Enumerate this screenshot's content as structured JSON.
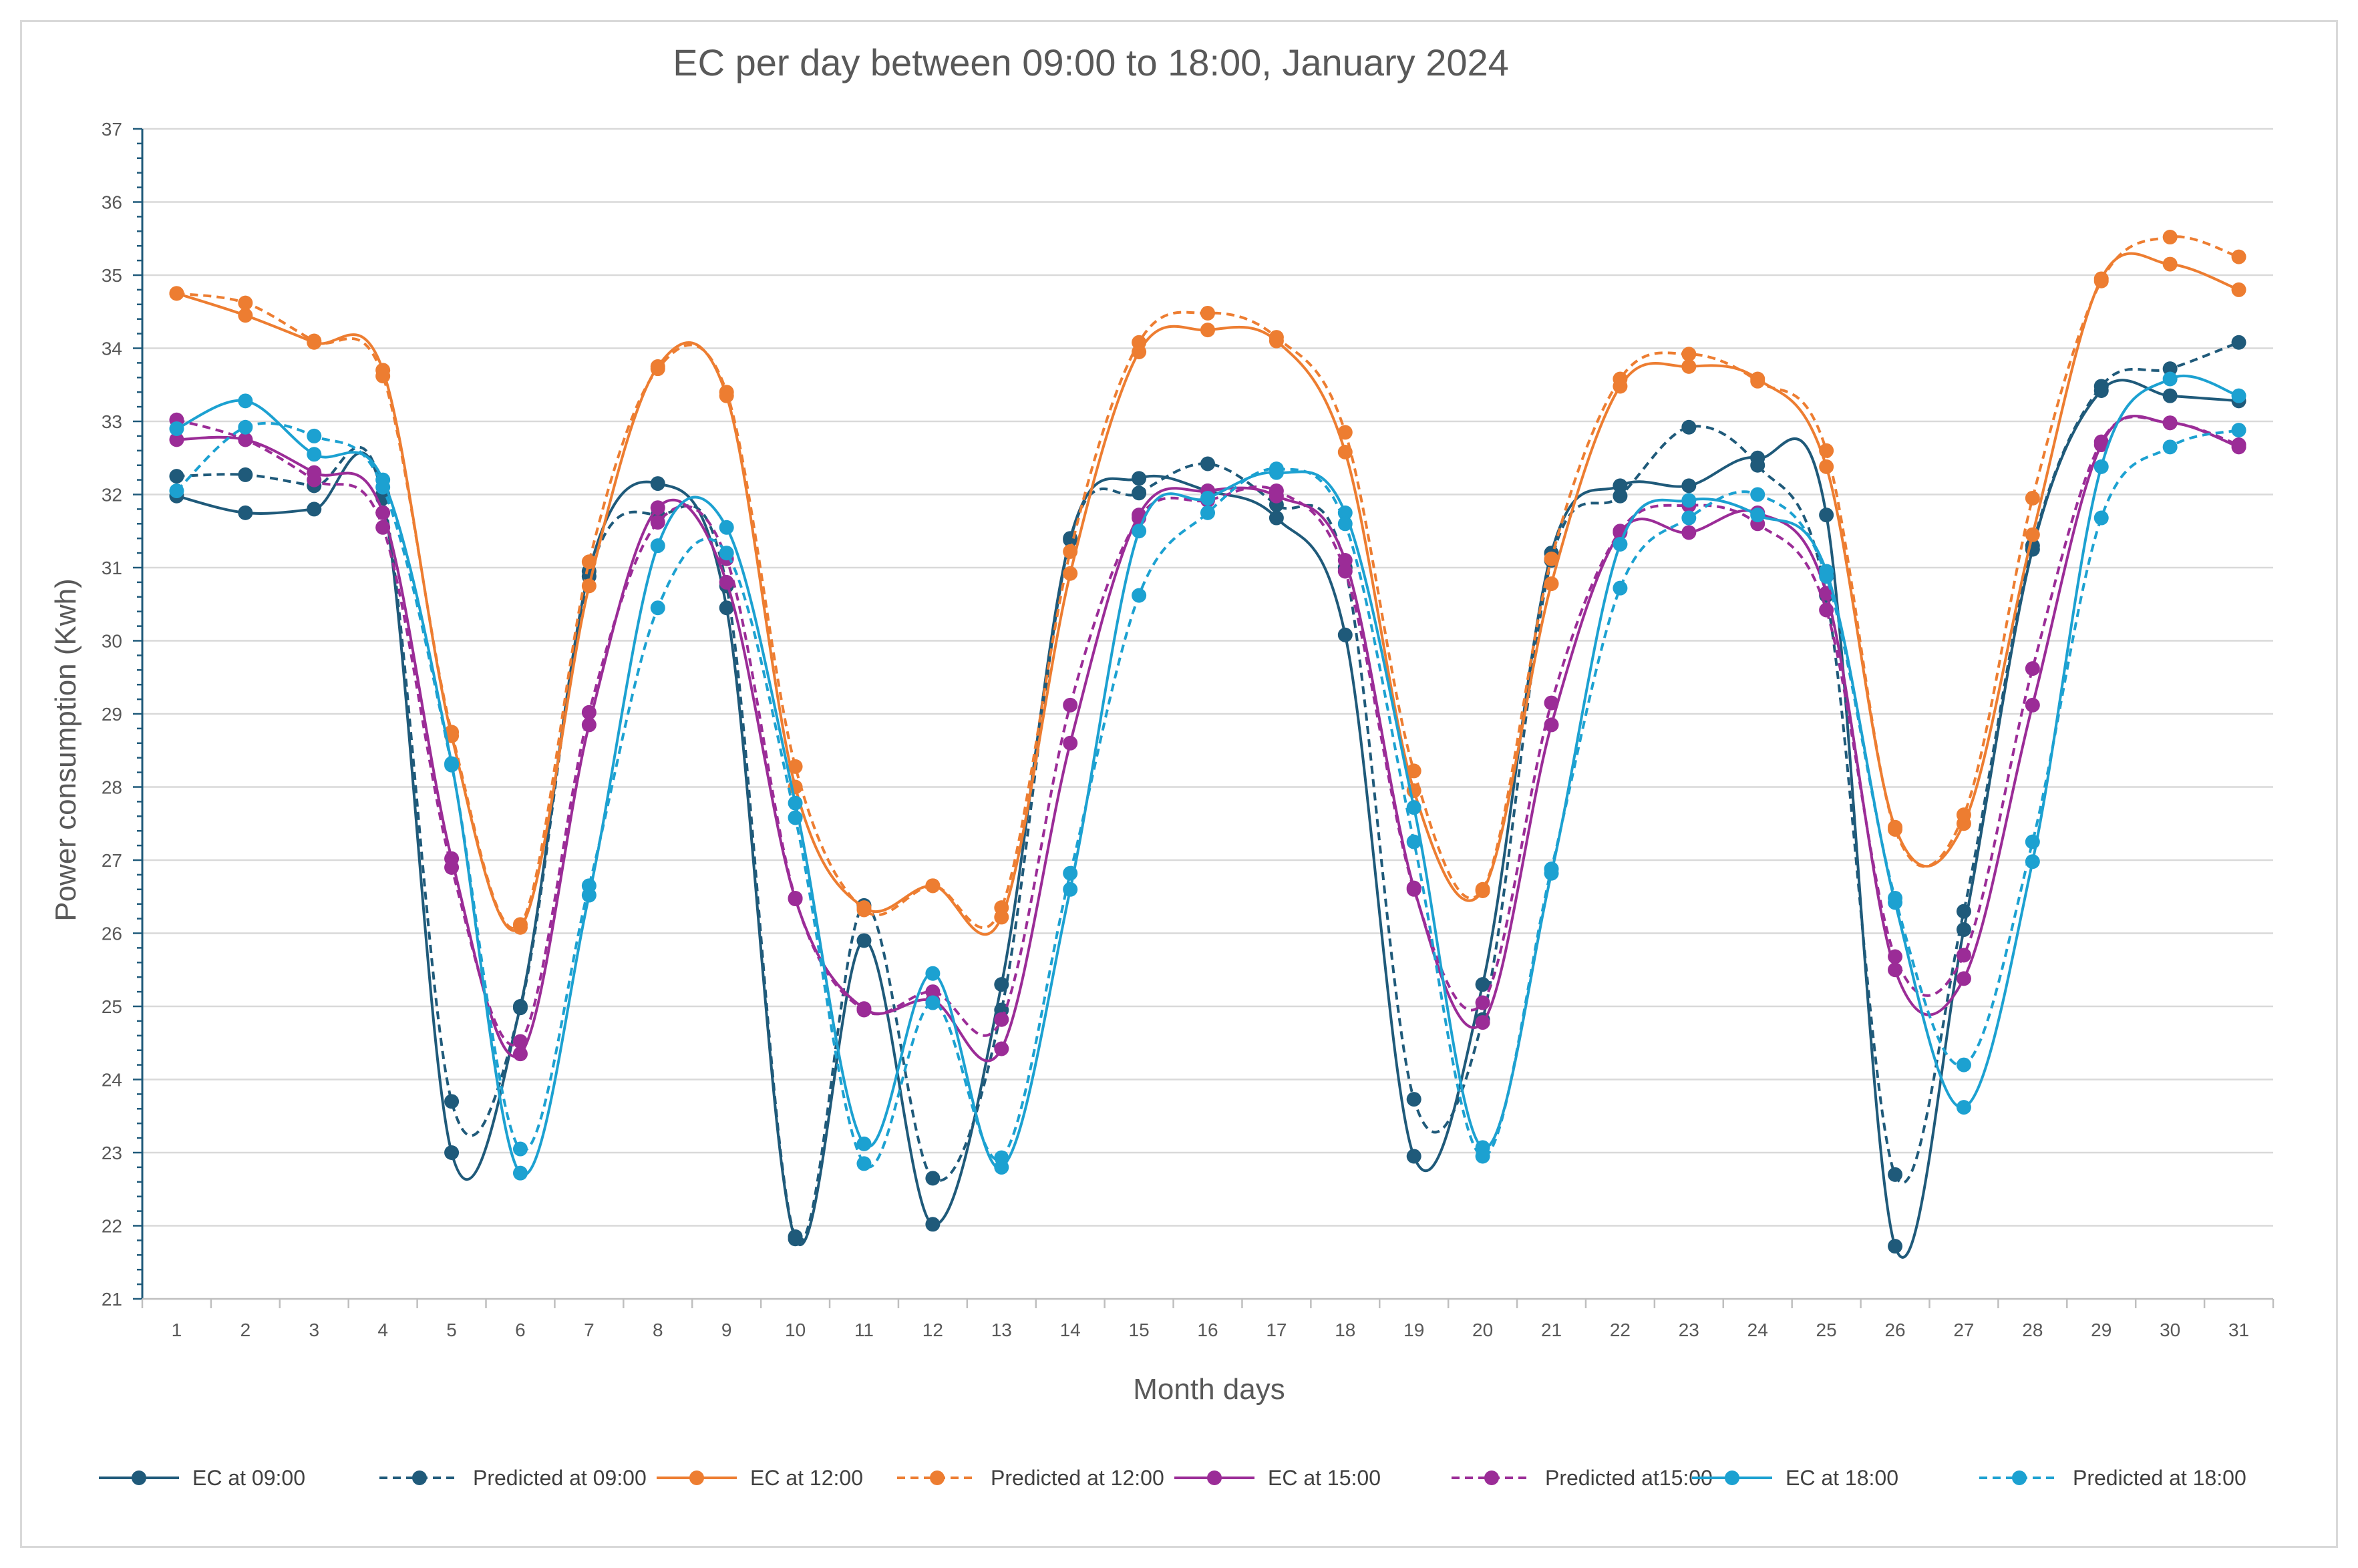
{
  "chart_data": {
    "type": "line",
    "title": "EC per day between 09:00 to 18:00, January 2024",
    "xlabel": "Month days",
    "ylabel": "Power consumption (Kwh)",
    "ylim": [
      21,
      37
    ],
    "yticks": [
      "21",
      "22",
      "23",
      "24",
      "25",
      "26",
      "27",
      "28",
      "29",
      "30",
      "31",
      "32",
      "33",
      "34",
      "35",
      "36",
      "37"
    ],
    "x": [
      "1",
      "2",
      "3",
      "4",
      "5",
      "6",
      "7",
      "8",
      "9",
      "10",
      "11",
      "12",
      "13",
      "14",
      "15",
      "16",
      "17",
      "18",
      "19",
      "20",
      "21",
      "22",
      "23",
      "24",
      "25",
      "26",
      "27",
      "28",
      "29",
      "30",
      "31"
    ],
    "grid": "horizontal",
    "legend_position": "bottom",
    "series": [
      {
        "name": "EC at 09:00",
        "color": "#1f5a7a",
        "dash": false,
        "values": [
          31.98,
          31.75,
          31.8,
          31.95,
          23.0,
          25.0,
          30.95,
          32.15,
          30.45,
          21.82,
          25.9,
          22.02,
          25.3,
          31.4,
          32.22,
          32.05,
          31.68,
          30.08,
          22.95,
          25.3,
          31.2,
          32.12,
          32.12,
          32.5,
          31.72,
          21.72,
          26.05,
          31.25,
          33.42,
          33.35,
          33.28
        ]
      },
      {
        "name": "Predicted at 09:00",
        "color": "#1f5a7a",
        "dash": true,
        "values": [
          32.25,
          32.27,
          32.12,
          32.0,
          23.7,
          24.98,
          30.88,
          31.72,
          30.75,
          21.85,
          26.38,
          22.65,
          24.95,
          31.38,
          32.02,
          32.42,
          31.86,
          31.0,
          23.73,
          24.82,
          31.1,
          31.98,
          32.92,
          32.4,
          30.62,
          22.7,
          26.3,
          31.3,
          33.48,
          33.72,
          34.08
        ]
      },
      {
        "name": "EC at 12:00",
        "color": "#ed7d31",
        "dash": false,
        "values": [
          34.75,
          34.45,
          34.08,
          33.7,
          28.7,
          26.08,
          30.75,
          33.75,
          33.35,
          28.0,
          26.35,
          26.65,
          26.22,
          30.92,
          33.95,
          34.25,
          34.1,
          32.58,
          27.95,
          26.58,
          30.78,
          33.48,
          33.75,
          33.58,
          32.38,
          27.45,
          27.5,
          31.45,
          34.95,
          35.15,
          34.8
        ]
      },
      {
        "name": "Predicted at 12:00",
        "color": "#ed7d31",
        "dash": true,
        "values": [
          34.75,
          34.62,
          34.1,
          33.62,
          28.75,
          26.12,
          31.08,
          33.72,
          33.4,
          28.28,
          26.32,
          26.65,
          26.35,
          31.22,
          34.08,
          34.48,
          34.15,
          32.85,
          28.22,
          26.6,
          31.12,
          33.58,
          33.92,
          33.55,
          32.6,
          27.42,
          27.62,
          31.95,
          34.92,
          35.52,
          35.25
        ]
      },
      {
        "name": "EC at 15:00",
        "color": "#9b2c97",
        "dash": false,
        "values": [
          32.75,
          32.75,
          32.3,
          31.75,
          27.02,
          24.35,
          28.85,
          31.82,
          30.8,
          26.47,
          24.97,
          25.08,
          24.42,
          28.6,
          31.72,
          32.05,
          31.98,
          31.1,
          26.62,
          24.78,
          28.85,
          31.48,
          31.48,
          31.75,
          30.65,
          25.5,
          25.38,
          29.12,
          32.68,
          32.98,
          32.65
        ]
      },
      {
        "name": "Predicted at15:00",
        "color": "#9b2c97",
        "dash": true,
        "values": [
          33.02,
          32.75,
          32.2,
          31.55,
          26.9,
          24.52,
          29.02,
          31.62,
          31.12,
          26.48,
          24.95,
          25.2,
          24.82,
          29.12,
          31.68,
          31.92,
          32.05,
          30.95,
          26.6,
          25.05,
          29.15,
          31.5,
          31.85,
          31.6,
          30.42,
          25.68,
          25.7,
          29.62,
          32.72,
          32.98,
          32.68
        ]
      },
      {
        "name": "EC at 18:00",
        "color": "#1ca1d1",
        "dash": false,
        "values": [
          32.9,
          33.28,
          32.55,
          32.2,
          28.32,
          22.72,
          26.52,
          31.3,
          31.55,
          27.78,
          23.12,
          25.45,
          22.8,
          26.6,
          31.5,
          31.95,
          32.3,
          31.75,
          27.72,
          23.07,
          26.82,
          31.32,
          31.92,
          31.72,
          30.95,
          26.42,
          23.62,
          26.98,
          32.38,
          33.58,
          33.35
        ]
      },
      {
        "name": "Predicted at 18:00",
        "color": "#1ca1d1",
        "dash": true,
        "values": [
          32.05,
          32.92,
          32.8,
          32.1,
          28.3,
          23.05,
          26.65,
          30.45,
          31.2,
          27.58,
          22.85,
          25.05,
          22.93,
          26.82,
          30.62,
          31.75,
          32.35,
          31.6,
          27.25,
          22.95,
          26.88,
          30.72,
          31.68,
          32.0,
          30.88,
          26.48,
          24.2,
          27.25,
          31.68,
          32.65,
          32.88
        ]
      }
    ]
  }
}
